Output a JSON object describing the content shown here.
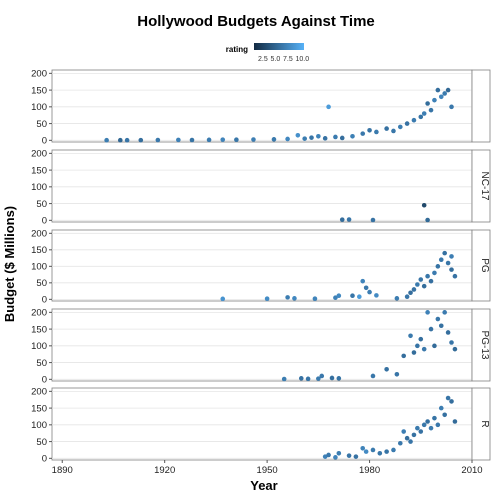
{
  "chart_data": {
    "type": "scatter",
    "title": "Hollywood Budgets Against Time",
    "xlabel": "Year",
    "ylabel": "Budget ($ Millions)",
    "xlim": [
      1887,
      2010
    ],
    "ylim": [
      -5,
      210
    ],
    "x_ticks": [
      1890,
      1920,
      1950,
      1980,
      2010
    ],
    "y_ticks": [
      0,
      50,
      100,
      150,
      200
    ],
    "grid": true,
    "legend": {
      "title": "rating",
      "position": "top",
      "labels": [
        "2.5",
        "5.0",
        "7.5",
        "10.0"
      ],
      "colors": [
        "#132b43",
        "#56b1f7"
      ]
    },
    "facets": [
      {
        "label": "",
        "points": [
          [
            1903,
            0.3,
            6.5
          ],
          [
            1907,
            0.4,
            5.0
          ],
          [
            1909,
            0.3,
            6.0
          ],
          [
            1913,
            0.5,
            5.5
          ],
          [
            1918,
            0.8,
            6.2
          ],
          [
            1924,
            1.2,
            6.8
          ],
          [
            1928,
            1.0,
            5.9
          ],
          [
            1933,
            1.5,
            6.4
          ],
          [
            1937,
            2.0,
            7.0
          ],
          [
            1941,
            1.8,
            6.1
          ],
          [
            1946,
            2.5,
            6.6
          ],
          [
            1952,
            3.0,
            6.3
          ],
          [
            1956,
            4.0,
            7.2
          ],
          [
            1959,
            15.0,
            7.8
          ],
          [
            1961,
            5.0,
            6.5
          ],
          [
            1963,
            8.0,
            6.0
          ],
          [
            1965,
            12.0,
            6.9
          ],
          [
            1967,
            6.0,
            5.8
          ],
          [
            1968,
            100.0,
            8.5
          ],
          [
            1970,
            10.0,
            6.4
          ],
          [
            1972,
            7.0,
            5.5
          ],
          [
            1975,
            12.0,
            6.7
          ],
          [
            1978,
            20.0,
            6.2
          ],
          [
            1980,
            30.0,
            5.9
          ],
          [
            1982,
            25.0,
            6.3
          ],
          [
            1985,
            35.0,
            5.7
          ],
          [
            1987,
            28.0,
            6.1
          ],
          [
            1989,
            40.0,
            6.5
          ],
          [
            1991,
            50.0,
            5.8
          ],
          [
            1993,
            60.0,
            6.4
          ],
          [
            1995,
            70.0,
            5.9
          ],
          [
            1996,
            80.0,
            6.6
          ],
          [
            1997,
            110.0,
            5.4
          ],
          [
            1998,
            90.0,
            6.0
          ],
          [
            1999,
            120.0,
            6.8
          ],
          [
            2000,
            150.0,
            5.5
          ],
          [
            2001,
            130.0,
            7.0
          ],
          [
            2002,
            140.0,
            6.3
          ],
          [
            2003,
            150.0,
            5.1
          ],
          [
            2004,
            100.0,
            6.2
          ]
        ]
      },
      {
        "label": "NC-17",
        "points": [
          [
            1972,
            2.0,
            5.5
          ],
          [
            1974,
            2.5,
            6.0
          ],
          [
            1981,
            1.0,
            5.8
          ],
          [
            1996,
            45.0,
            3.0
          ],
          [
            1997,
            1.0,
            5.2
          ]
        ]
      },
      {
        "label": "PG",
        "points": [
          [
            1937,
            1.5,
            8.0
          ],
          [
            1950,
            2.0,
            7.5
          ],
          [
            1956,
            6.0,
            6.5
          ],
          [
            1958,
            3.0,
            7.2
          ],
          [
            1964,
            2.0,
            7.0
          ],
          [
            1970,
            5.0,
            6.8
          ],
          [
            1971,
            11.0,
            7.3
          ],
          [
            1975,
            11.0,
            6.0
          ],
          [
            1977,
            8.0,
            8.5
          ],
          [
            1978,
            55.0,
            7.0
          ],
          [
            1979,
            35.0,
            6.2
          ],
          [
            1980,
            22.0,
            6.6
          ],
          [
            1982,
            12.0,
            7.4
          ],
          [
            1988,
            3.0,
            6.5
          ],
          [
            1991,
            8.0,
            6.0
          ],
          [
            1992,
            20.0,
            5.5
          ],
          [
            1993,
            30.0,
            5.8
          ],
          [
            1994,
            45.0,
            6.3
          ],
          [
            1995,
            60.0,
            6.0
          ],
          [
            1996,
            40.0,
            5.4
          ],
          [
            1997,
            70.0,
            6.1
          ],
          [
            1998,
            55.0,
            5.6
          ],
          [
            1999,
            80.0,
            6.4
          ],
          [
            2000,
            100.0,
            5.9
          ],
          [
            2001,
            120.0,
            6.2
          ],
          [
            2002,
            140.0,
            5.7
          ],
          [
            2003,
            110.0,
            6.0
          ],
          [
            2004,
            90.0,
            5.5
          ],
          [
            2004,
            130.0,
            6.6
          ],
          [
            2005,
            70.0,
            5.8
          ]
        ]
      },
      {
        "label": "PG-13",
        "points": [
          [
            1955,
            1.0,
            6.5
          ],
          [
            1960,
            3.0,
            5.8
          ],
          [
            1962,
            1.5,
            6.0
          ],
          [
            1965,
            2.0,
            6.4
          ],
          [
            1966,
            10.0,
            6.2
          ],
          [
            1969,
            4.0,
            5.6
          ],
          [
            1971,
            3.0,
            5.9
          ],
          [
            1981,
            10.0,
            6.1
          ],
          [
            1985,
            30.0,
            5.7
          ],
          [
            1988,
            15.0,
            6.0
          ],
          [
            1990,
            70.0,
            5.5
          ],
          [
            1992,
            130.0,
            6.3
          ],
          [
            1993,
            80.0,
            5.4
          ],
          [
            1994,
            100.0,
            5.9
          ],
          [
            1995,
            120.0,
            5.6
          ],
          [
            1996,
            90.0,
            6.2
          ],
          [
            1997,
            200.0,
            6.8
          ],
          [
            1998,
            150.0,
            5.8
          ],
          [
            1999,
            100.0,
            5.3
          ],
          [
            2000,
            180.0,
            6.1
          ],
          [
            2001,
            160.0,
            5.7
          ],
          [
            2002,
            200.0,
            6.4
          ],
          [
            2003,
            140.0,
            5.5
          ],
          [
            2004,
            110.0,
            6.0
          ],
          [
            2005,
            90.0,
            5.2
          ]
        ]
      },
      {
        "label": "R",
        "points": [
          [
            1967,
            5.0,
            6.8
          ],
          [
            1968,
            10.0,
            6.2
          ],
          [
            1970,
            3.0,
            7.0
          ],
          [
            1971,
            15.0,
            6.5
          ],
          [
            1974,
            8.0,
            6.0
          ],
          [
            1976,
            5.0,
            5.8
          ],
          [
            1978,
            30.0,
            6.9
          ],
          [
            1979,
            20.0,
            7.4
          ],
          [
            1981,
            25.0,
            6.3
          ],
          [
            1983,
            15.0,
            6.1
          ],
          [
            1985,
            20.0,
            5.9
          ],
          [
            1987,
            25.0,
            6.4
          ],
          [
            1989,
            45.0,
            6.2
          ],
          [
            1990,
            80.0,
            6.6
          ],
          [
            1991,
            60.0,
            5.5
          ],
          [
            1992,
            50.0,
            6.0
          ],
          [
            1993,
            70.0,
            5.7
          ],
          [
            1994,
            90.0,
            6.3
          ],
          [
            1995,
            80.0,
            5.8
          ],
          [
            1996,
            100.0,
            6.1
          ],
          [
            1997,
            110.0,
            5.6
          ],
          [
            1998,
            90.0,
            6.4
          ],
          [
            1999,
            120.0,
            5.9
          ],
          [
            2000,
            100.0,
            6.2
          ],
          [
            2001,
            150.0,
            6.5
          ],
          [
            2002,
            130.0,
            5.7
          ],
          [
            2003,
            180.0,
            6.0
          ],
          [
            2004,
            170.0,
            5.5
          ],
          [
            2005,
            110.0,
            5.3
          ]
        ]
      }
    ]
  }
}
